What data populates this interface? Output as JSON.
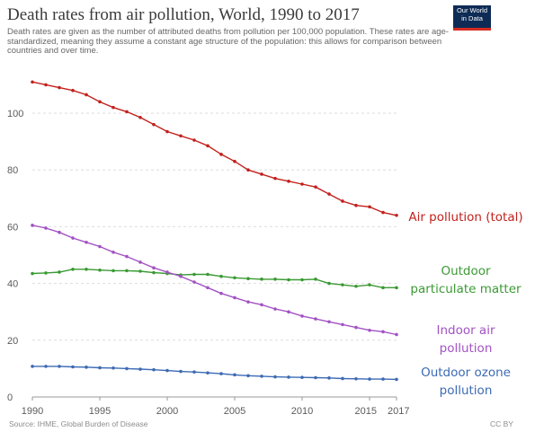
{
  "header": {
    "title": "Death rates from air pollution, World, 1990 to 2017",
    "subtitle": "Death rates are given as the number of attributed deaths from pollution per 100,000 population. These rates are age-standardized, meaning they assume a constant age structure of the population: this allows for comparison between countries and over time.",
    "logo_line1": "Our World",
    "logo_line2": "in Data"
  },
  "footer": {
    "source": "Source: IHME, Global Burden of Disease",
    "license": "CC BY"
  },
  "chart_data": {
    "type": "line",
    "title": "Death rates from air pollution, World, 1990 to 2017",
    "xlabel": "",
    "ylabel": "",
    "xlim": [
      1990,
      2017
    ],
    "ylim": [
      0,
      112
    ],
    "grid": "horizontal dashed",
    "x_ticks": [
      "1990",
      "1995",
      "2000",
      "2005",
      "2010",
      "2015",
      "2017"
    ],
    "y_ticks": [
      "0",
      "20",
      "40",
      "60",
      "80",
      "100"
    ],
    "x": [
      1990,
      1991,
      1992,
      1993,
      1994,
      1995,
      1996,
      1997,
      1998,
      1999,
      2000,
      2001,
      2002,
      2003,
      2004,
      2005,
      2006,
      2007,
      2008,
      2009,
      2010,
      2011,
      2012,
      2013,
      2014,
      2015,
      2016,
      2017
    ],
    "series": [
      {
        "name": "Air pollution (total)",
        "label_lines": [
          "Air pollution (total)"
        ],
        "color": "#c2211d",
        "values": [
          111,
          110,
          109,
          108,
          106.5,
          104,
          102,
          100.5,
          98.5,
          96,
          93.5,
          92,
          90.5,
          88.5,
          85.5,
          83,
          80,
          78.5,
          77,
          76,
          75,
          74,
          71.5,
          69,
          67.5,
          67,
          65,
          64
        ]
      },
      {
        "name": "Outdoor particulate matter",
        "label_lines": [
          "Outdoor",
          "particulate matter"
        ],
        "color": "#3a9a33",
        "values": [
          43.5,
          43.7,
          44,
          45,
          45,
          44.7,
          44.5,
          44.5,
          44.3,
          43.8,
          43.5,
          43,
          43.2,
          43.2,
          42.5,
          42,
          41.7,
          41.5,
          41.5,
          41.3,
          41.3,
          41.5,
          40,
          39.5,
          39,
          39.5,
          38.5,
          38.5
        ]
      },
      {
        "name": "Indoor air pollution",
        "label_lines": [
          "Indoor air",
          "pollution"
        ],
        "color": "#a352c4",
        "values": [
          60.5,
          59.5,
          58,
          56,
          54.5,
          53,
          51,
          49.5,
          47.5,
          45.5,
          44,
          42.5,
          40.5,
          38.5,
          36.5,
          35,
          33.5,
          32.5,
          31,
          30,
          28.5,
          27.5,
          26.5,
          25.5,
          24.5,
          23.5,
          23,
          22
        ]
      },
      {
        "name": "Outdoor ozone pollution",
        "label_lines": [
          "Outdoor ozone",
          "pollution"
        ],
        "color": "#3c6ab4",
        "values": [
          10.8,
          10.8,
          10.8,
          10.6,
          10.5,
          10.3,
          10.2,
          10,
          9.8,
          9.6,
          9.3,
          9,
          8.8,
          8.5,
          8.2,
          7.8,
          7.5,
          7.3,
          7.1,
          7,
          6.9,
          6.8,
          6.7,
          6.5,
          6.4,
          6.3,
          6.3,
          6.2
        ]
      }
    ]
  }
}
